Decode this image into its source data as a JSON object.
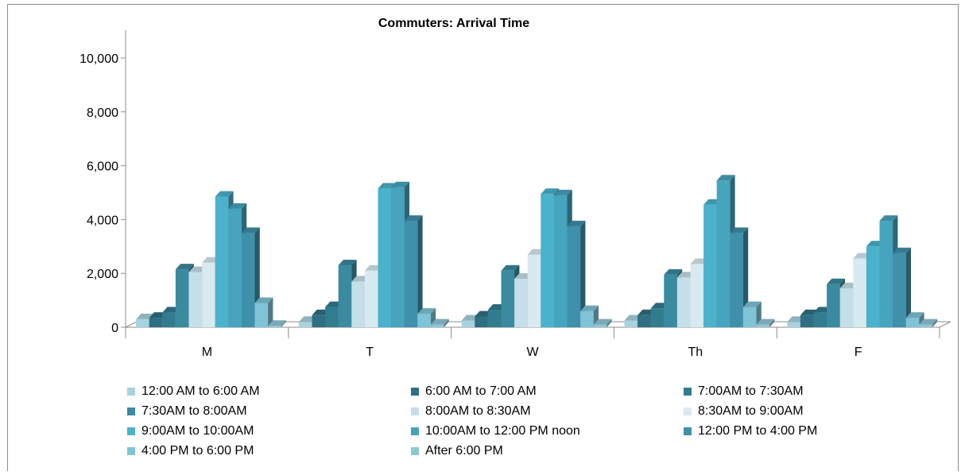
{
  "chart_data": {
    "type": "bar",
    "title": "Commuters: Arrival Time",
    "xlabel": "",
    "ylabel": "",
    "categories": [
      "M",
      "T",
      "W",
      "Th",
      "F"
    ],
    "ylim": [
      0,
      10000
    ],
    "yticks": [
      0,
      2000,
      4000,
      6000,
      8000,
      10000
    ],
    "ytick_labels": [
      "0",
      "2,000",
      "4,000",
      "6,000",
      "8,000",
      "10,000"
    ],
    "grid": false,
    "legend_position": "bottom",
    "style": "3d-clustered-column",
    "series": [
      {
        "name": "12:00 AM to 6:00 AM",
        "color": "#a8d2e0",
        "values": [
          300,
          200,
          250,
          250,
          200
        ]
      },
      {
        "name": "6:00 AM to 7:00 AM",
        "color": "#2f6f84",
        "values": [
          350,
          450,
          400,
          450,
          450
        ]
      },
      {
        "name": "7:00AM to 7:30AM",
        "color": "#327c8f",
        "values": [
          550,
          750,
          650,
          700,
          550
        ]
      },
      {
        "name": "7:30AM to 8:00AM",
        "color": "#3a8aa0",
        "values": [
          2150,
          2300,
          2100,
          1950,
          1600
        ]
      },
      {
        "name": "8:00AM to 8:30AM",
        "color": "#c4dfe8",
        "values": [
          2050,
          1700,
          1800,
          1850,
          1450
        ]
      },
      {
        "name": "8:30AM to 9:00AM",
        "color": "#d8eaf0",
        "values": [
          2400,
          2100,
          2700,
          2350,
          2550
        ]
      },
      {
        "name": "9:00AM to 10:00AM",
        "color": "#4ab2cc",
        "values": [
          4850,
          5150,
          4950,
          4550,
          3000
        ]
      },
      {
        "name": "10:00AM to 12:00 PM noon",
        "color": "#46a4be",
        "values": [
          4400,
          5200,
          4900,
          5450,
          3950
        ]
      },
      {
        "name": "12:00 PM to 4:00 PM",
        "color": "#3f90aa",
        "values": [
          3500,
          3950,
          3750,
          3500,
          2750
        ]
      },
      {
        "name": "4:00 PM to 6:00 PM",
        "color": "#7fc3d6",
        "values": [
          900,
          500,
          600,
          750,
          350
        ]
      },
      {
        "name": "After 6:00 PM",
        "color": "#8fc6d6",
        "values": [
          50,
          100,
          100,
          100,
          100
        ]
      }
    ]
  }
}
